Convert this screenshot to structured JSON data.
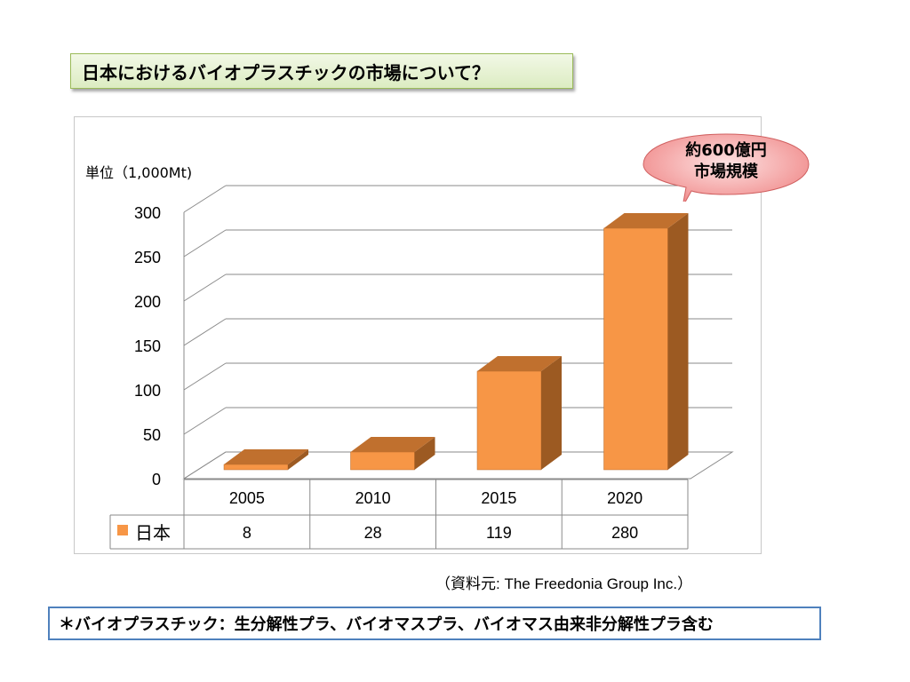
{
  "title": "日本におけるバイオプラスチックの市場について？",
  "callout": {
    "line1": "約600億円",
    "line2": "市場規模"
  },
  "source": "（資料元: The Freedonia Group Inc.）",
  "note": "＊バイオプラスチック：生分解性プラ、バイオマスプラ、バイオマス由来非分解性プラ含む",
  "colors": {
    "bar_front": "#f79646",
    "bar_side": "#9c5a22",
    "bar_top": "#c0702e",
    "title_border": "#9bbb59",
    "note_border": "#4f81bd",
    "callout_fill": "#f4a6a6"
  },
  "chart_data": {
    "type": "bar",
    "unit_label": "単位（1,000Mt)",
    "categories": [
      "2005",
      "2010",
      "2015",
      "2020"
    ],
    "series": [
      {
        "name": "日本",
        "values": [
          8,
          28,
          119,
          280
        ]
      }
    ],
    "y_ticks": [
      "0",
      "50",
      "100",
      "150",
      "200",
      "250",
      "300"
    ],
    "ylim": [
      0,
      300
    ],
    "grid": true,
    "legend": "data-table",
    "style": "3d-column"
  }
}
